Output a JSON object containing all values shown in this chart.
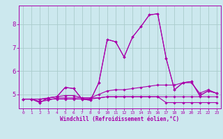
{
  "xlabel": "Windchill (Refroidissement éolien,°C)",
  "bg_color": "#cce8ee",
  "grid_color": "#aacccc",
  "line_color": "#aa00aa",
  "xlim": [
    -0.5,
    23.5
  ],
  "ylim": [
    4.4,
    8.8
  ],
  "yticks": [
    5,
    6,
    7,
    8
  ],
  "xticks": [
    0,
    1,
    2,
    3,
    4,
    5,
    6,
    7,
    8,
    9,
    10,
    11,
    12,
    13,
    14,
    15,
    16,
    17,
    18,
    19,
    20,
    21,
    22,
    23
  ],
  "lines": [
    [
      4.8,
      4.8,
      4.65,
      4.85,
      4.9,
      5.3,
      5.25,
      4.8,
      4.75,
      5.5,
      7.35,
      7.25,
      6.6,
      7.45,
      7.9,
      8.4,
      8.45,
      6.55,
      5.2,
      5.5,
      5.55,
      4.95,
      5.15,
      5.05
    ],
    [
      4.8,
      4.8,
      4.7,
      4.75,
      4.85,
      4.85,
      4.85,
      4.85,
      4.85,
      4.85,
      4.9,
      4.9,
      4.9,
      4.9,
      4.9,
      4.9,
      4.9,
      4.9,
      4.9,
      4.9,
      4.9,
      4.9,
      4.9,
      4.9
    ],
    [
      4.8,
      4.8,
      4.8,
      4.8,
      4.8,
      4.8,
      4.8,
      4.8,
      4.8,
      4.85,
      4.9,
      4.9,
      4.9,
      4.9,
      4.9,
      4.9,
      4.9,
      4.65,
      4.65,
      4.65,
      4.65,
      4.65,
      4.65,
      4.65
    ],
    [
      4.8,
      4.8,
      4.8,
      4.85,
      4.9,
      4.95,
      4.95,
      4.85,
      4.85,
      5.0,
      5.15,
      5.2,
      5.2,
      5.25,
      5.3,
      5.35,
      5.4,
      5.4,
      5.4,
      5.5,
      5.5,
      5.05,
      5.2,
      5.05
    ],
    [
      4.8,
      4.8,
      4.65,
      4.85,
      4.9,
      5.3,
      5.25,
      4.8,
      4.75,
      5.5,
      7.35,
      7.25,
      6.6,
      7.45,
      7.9,
      8.4,
      8.45,
      6.55,
      5.2,
      5.5,
      5.55,
      4.95,
      5.15,
      5.05
    ]
  ]
}
